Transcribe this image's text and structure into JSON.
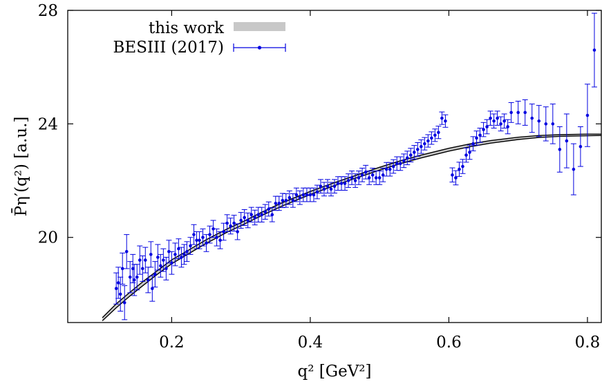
{
  "chart_data": {
    "type": "scatter",
    "title": "",
    "xlabel": "q² [GeV²]",
    "ylabel": "P̄η′(q²) [a.u.]",
    "xlim": [
      0.05,
      0.82
    ],
    "ylim": [
      17.0,
      28.0
    ],
    "x_ticks": [
      0.2,
      0.4,
      0.6,
      0.8
    ],
    "x_tick_labels": [
      "0.2",
      "0.4",
      "0.6",
      "0.8"
    ],
    "y_ticks": [
      20,
      24,
      28
    ],
    "y_tick_labels": [
      "20",
      "24",
      "28"
    ],
    "grid": false,
    "legend_position": "top-left",
    "series": [
      {
        "name": "this work",
        "kind": "band",
        "color": "#000000",
        "band_color": "#c8c8c8",
        "x": [
          0.1,
          0.12,
          0.14,
          0.16,
          0.18,
          0.2,
          0.22,
          0.25,
          0.28,
          0.3,
          0.33,
          0.36,
          0.4,
          0.43,
          0.46,
          0.5,
          0.53,
          0.56,
          0.6,
          0.63,
          0.66,
          0.7,
          0.73,
          0.76,
          0.8,
          0.82
        ],
        "upper": [
          17.17,
          17.66,
          18.07,
          18.47,
          18.84,
          19.21,
          19.49,
          19.92,
          20.3,
          20.52,
          20.89,
          21.23,
          21.62,
          21.89,
          22.14,
          22.47,
          22.7,
          22.9,
          23.14,
          23.29,
          23.41,
          23.53,
          23.59,
          23.62,
          23.64,
          23.64
        ],
        "lower": [
          17.06,
          17.52,
          17.94,
          18.33,
          18.71,
          19.07,
          19.36,
          19.79,
          20.18,
          20.41,
          20.77,
          21.11,
          21.51,
          21.78,
          22.04,
          22.37,
          22.6,
          22.8,
          23.04,
          23.19,
          23.32,
          23.45,
          23.52,
          23.56,
          23.58,
          23.59
        ]
      },
      {
        "name": "BESIII (2017)",
        "kind": "errorbar",
        "color": "#0000e0",
        "points": [
          [
            0.12,
            18.2,
            0.55
          ],
          [
            0.123,
            18.4,
            0.55
          ],
          [
            0.126,
            18.0,
            0.6
          ],
          [
            0.129,
            18.9,
            0.55
          ],
          [
            0.132,
            17.7,
            0.6
          ],
          [
            0.135,
            19.5,
            0.6
          ],
          [
            0.14,
            18.6,
            0.55
          ],
          [
            0.144,
            18.9,
            0.5
          ],
          [
            0.146,
            18.5,
            0.55
          ],
          [
            0.15,
            18.6,
            0.45
          ],
          [
            0.154,
            19.2,
            0.5
          ],
          [
            0.158,
            18.9,
            0.45
          ],
          [
            0.162,
            19.2,
            0.45
          ],
          [
            0.166,
            18.5,
            0.45
          ],
          [
            0.17,
            19.4,
            0.45
          ],
          [
            0.172,
            18.2,
            0.45
          ],
          [
            0.176,
            18.7,
            0.45
          ],
          [
            0.18,
            19.3,
            0.45
          ],
          [
            0.184,
            19.0,
            0.4
          ],
          [
            0.188,
            19.2,
            0.4
          ],
          [
            0.192,
            18.9,
            0.4
          ],
          [
            0.196,
            19.5,
            0.4
          ],
          [
            0.2,
            19.1,
            0.4
          ],
          [
            0.205,
            19.4,
            0.4
          ],
          [
            0.21,
            19.6,
            0.35
          ],
          [
            0.214,
            19.3,
            0.35
          ],
          [
            0.218,
            19.4,
            0.35
          ],
          [
            0.222,
            19.5,
            0.35
          ],
          [
            0.227,
            19.7,
            0.3
          ],
          [
            0.232,
            20.1,
            0.35
          ],
          [
            0.236,
            19.9,
            0.3
          ],
          [
            0.24,
            19.9,
            0.3
          ],
          [
            0.245,
            20.0,
            0.3
          ],
          [
            0.25,
            19.8,
            0.3
          ],
          [
            0.255,
            20.1,
            0.3
          ],
          [
            0.26,
            20.3,
            0.3
          ],
          [
            0.265,
            20.0,
            0.3
          ],
          [
            0.27,
            19.9,
            0.3
          ],
          [
            0.275,
            20.2,
            0.3
          ],
          [
            0.28,
            20.5,
            0.3
          ],
          [
            0.285,
            20.4,
            0.28
          ],
          [
            0.29,
            20.5,
            0.28
          ],
          [
            0.295,
            20.2,
            0.28
          ],
          [
            0.3,
            20.6,
            0.28
          ],
          [
            0.305,
            20.7,
            0.28
          ],
          [
            0.31,
            20.6,
            0.26
          ],
          [
            0.315,
            20.8,
            0.26
          ],
          [
            0.32,
            20.7,
            0.26
          ],
          [
            0.325,
            20.8,
            0.26
          ],
          [
            0.33,
            20.8,
            0.26
          ],
          [
            0.335,
            20.9,
            0.26
          ],
          [
            0.34,
            21.0,
            0.25
          ],
          [
            0.345,
            20.8,
            0.25
          ],
          [
            0.35,
            21.2,
            0.25
          ],
          [
            0.355,
            21.2,
            0.25
          ],
          [
            0.36,
            21.3,
            0.25
          ],
          [
            0.365,
            21.3,
            0.24
          ],
          [
            0.37,
            21.4,
            0.24
          ],
          [
            0.375,
            21.3,
            0.24
          ],
          [
            0.38,
            21.5,
            0.24
          ],
          [
            0.385,
            21.4,
            0.24
          ],
          [
            0.39,
            21.5,
            0.24
          ],
          [
            0.395,
            21.5,
            0.24
          ],
          [
            0.4,
            21.5,
            0.24
          ],
          [
            0.405,
            21.5,
            0.24
          ],
          [
            0.41,
            21.6,
            0.24
          ],
          [
            0.415,
            21.8,
            0.24
          ],
          [
            0.42,
            21.7,
            0.24
          ],
          [
            0.425,
            21.8,
            0.24
          ],
          [
            0.43,
            21.7,
            0.24
          ],
          [
            0.435,
            21.8,
            0.24
          ],
          [
            0.44,
            21.9,
            0.24
          ],
          [
            0.445,
            21.9,
            0.24
          ],
          [
            0.45,
            21.9,
            0.24
          ],
          [
            0.455,
            22.0,
            0.24
          ],
          [
            0.46,
            22.1,
            0.24
          ],
          [
            0.465,
            22.0,
            0.24
          ],
          [
            0.47,
            22.1,
            0.24
          ],
          [
            0.475,
            22.2,
            0.24
          ],
          [
            0.48,
            22.3,
            0.24
          ],
          [
            0.485,
            22.1,
            0.24
          ],
          [
            0.49,
            22.2,
            0.24
          ],
          [
            0.495,
            22.1,
            0.24
          ],
          [
            0.5,
            22.1,
            0.24
          ],
          [
            0.505,
            22.2,
            0.24
          ],
          [
            0.51,
            22.4,
            0.24
          ],
          [
            0.515,
            22.4,
            0.24
          ],
          [
            0.52,
            22.5,
            0.24
          ],
          [
            0.525,
            22.6,
            0.24
          ],
          [
            0.53,
            22.6,
            0.24
          ],
          [
            0.535,
            22.7,
            0.24
          ],
          [
            0.54,
            22.8,
            0.24
          ],
          [
            0.545,
            22.9,
            0.24
          ],
          [
            0.55,
            23.0,
            0.24
          ],
          [
            0.555,
            23.1,
            0.24
          ],
          [
            0.56,
            23.2,
            0.24
          ],
          [
            0.565,
            23.3,
            0.22
          ],
          [
            0.57,
            23.4,
            0.22
          ],
          [
            0.575,
            23.5,
            0.22
          ],
          [
            0.58,
            23.6,
            0.22
          ],
          [
            0.585,
            23.7,
            0.22
          ],
          [
            0.59,
            24.2,
            0.22
          ],
          [
            0.595,
            24.1,
            0.22
          ],
          [
            0.605,
            22.2,
            0.25
          ],
          [
            0.61,
            22.1,
            0.25
          ],
          [
            0.615,
            22.4,
            0.25
          ],
          [
            0.62,
            22.5,
            0.25
          ],
          [
            0.625,
            22.9,
            0.25
          ],
          [
            0.63,
            23.0,
            0.25
          ],
          [
            0.635,
            23.3,
            0.25
          ],
          [
            0.64,
            23.5,
            0.25
          ],
          [
            0.645,
            23.6,
            0.25
          ],
          [
            0.65,
            23.8,
            0.25
          ],
          [
            0.655,
            23.9,
            0.25
          ],
          [
            0.66,
            24.2,
            0.25
          ],
          [
            0.665,
            24.1,
            0.25
          ],
          [
            0.67,
            24.2,
            0.25
          ],
          [
            0.675,
            24.0,
            0.25
          ],
          [
            0.68,
            24.1,
            0.25
          ],
          [
            0.685,
            23.9,
            0.25
          ],
          [
            0.69,
            24.4,
            0.35
          ],
          [
            0.7,
            24.4,
            0.4
          ],
          [
            0.71,
            24.4,
            0.45
          ],
          [
            0.72,
            24.2,
            0.5
          ],
          [
            0.73,
            24.1,
            0.55
          ],
          [
            0.74,
            24.0,
            0.6
          ],
          [
            0.75,
            24.0,
            0.7
          ],
          [
            0.76,
            23.1,
            0.8
          ],
          [
            0.77,
            23.4,
            0.95
          ],
          [
            0.78,
            22.4,
            0.9
          ],
          [
            0.79,
            23.2,
            0.7
          ],
          [
            0.8,
            24.3,
            1.1
          ],
          [
            0.81,
            26.6,
            1.3
          ]
        ]
      }
    ]
  }
}
